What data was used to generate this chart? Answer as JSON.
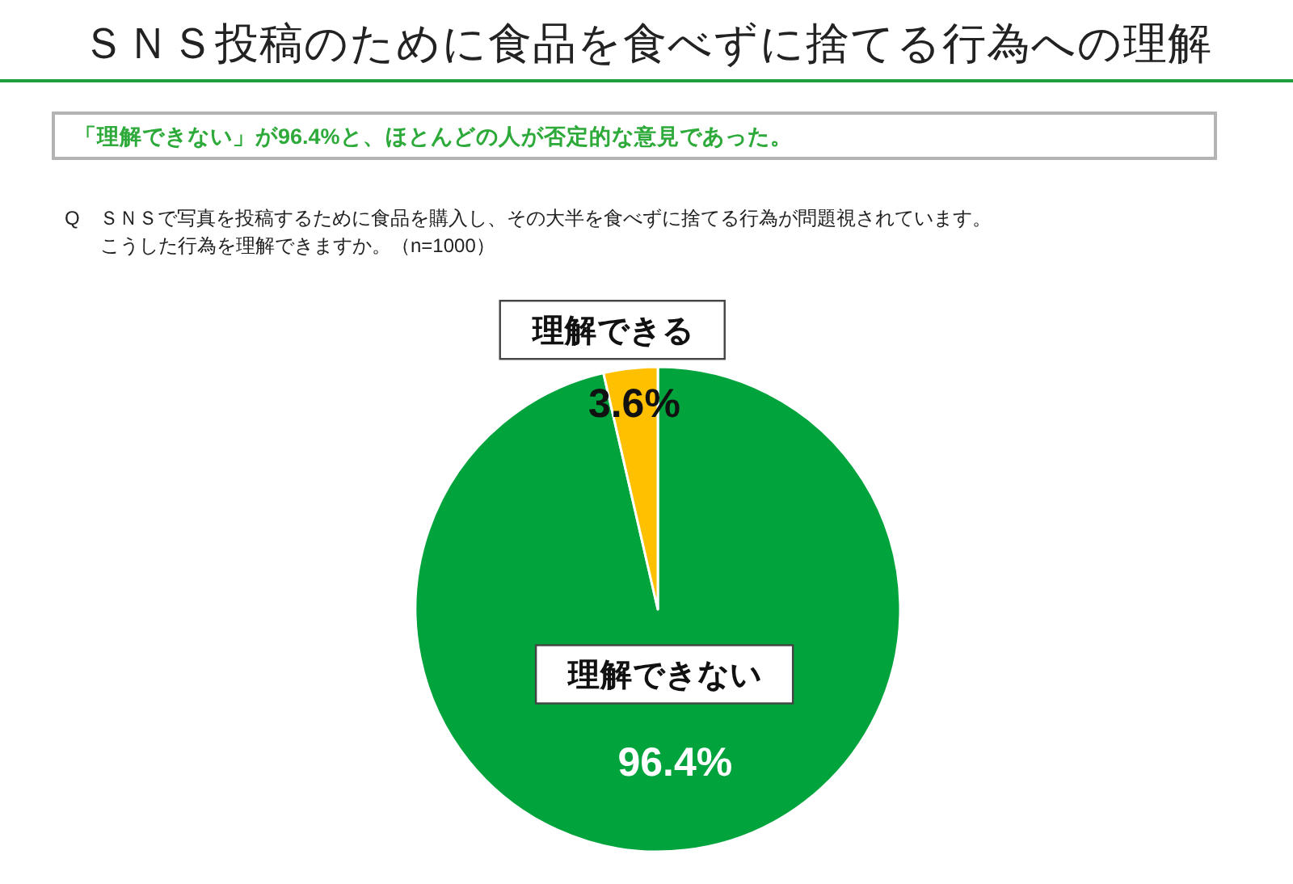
{
  "chart_data": {
    "type": "pie",
    "title": "ＳＮＳ投稿のために食品を食べずに捨てる行為への理解",
    "subtitle": "「理解できない」が96.4%と、ほとんどの人が否定的な意見であった。",
    "annotations": [
      "Q　ＳＮＳで写真を投稿するために食品を購入し、その大半を食べずに捨てる行為が問題視されています。",
      "こうした行為を理解できますか。（n=1000）"
    ],
    "categories": [
      "理解できない",
      "理解できる"
    ],
    "values": [
      96.4,
      3.6
    ],
    "colors": [
      "#00a33c",
      "#ffc000"
    ],
    "value_labels": [
      "96.4%",
      "3.6%"
    ]
  }
}
